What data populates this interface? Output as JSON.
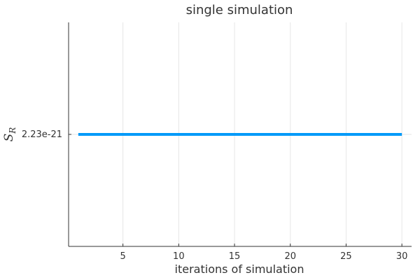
{
  "chart_data": {
    "type": "line",
    "title": "single simulation",
    "xlabel": "iterations of simulation",
    "ylabel": {
      "main": "S",
      "subscript": "R"
    },
    "x": [
      1,
      2,
      3,
      4,
      5,
      6,
      7,
      8,
      9,
      10,
      11,
      12,
      13,
      14,
      15,
      16,
      17,
      18,
      19,
      20,
      21,
      22,
      23,
      24,
      25,
      26,
      27,
      28,
      29,
      30
    ],
    "series": [
      {
        "values": [
          2.23e-21,
          2.23e-21,
          2.23e-21,
          2.23e-21,
          2.23e-21,
          2.23e-21,
          2.23e-21,
          2.23e-21,
          2.23e-21,
          2.23e-21,
          2.23e-21,
          2.23e-21,
          2.23e-21,
          2.23e-21,
          2.23e-21,
          2.23e-21,
          2.23e-21,
          2.23e-21,
          2.23e-21,
          2.23e-21,
          2.23e-21,
          2.23e-21,
          2.23e-21,
          2.23e-21,
          2.23e-21,
          2.23e-21,
          2.23e-21,
          2.23e-21,
          2.23e-21,
          2.23e-21
        ],
        "color": "#009af9"
      }
    ],
    "xticks": [
      {
        "value": 5,
        "label": "5"
      },
      {
        "value": 10,
        "label": "10"
      },
      {
        "value": 15,
        "label": "15"
      },
      {
        "value": 20,
        "label": "20"
      },
      {
        "value": 25,
        "label": "25"
      },
      {
        "value": 30,
        "label": "30"
      }
    ],
    "yticks": [
      {
        "value": 2.23e-21,
        "label": "2.23e-21"
      }
    ],
    "xlim": [
      0.13,
      30.87
    ],
    "ylim": [
      1.23e-21,
      3.23e-21
    ],
    "grid": true,
    "legend": "none"
  }
}
